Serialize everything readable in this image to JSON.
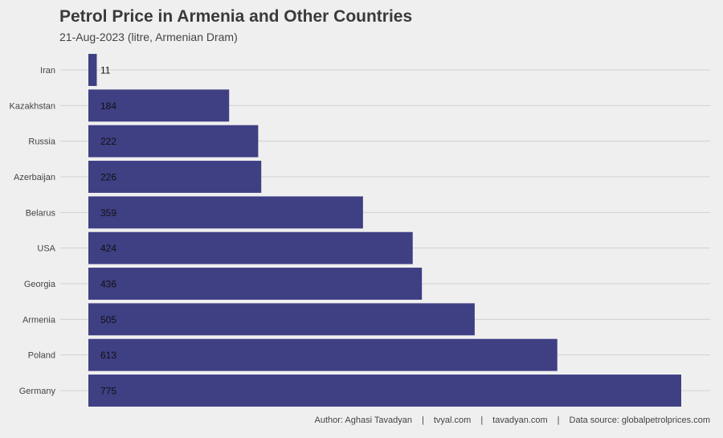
{
  "title": "Petrol Price in Armenia and Other Countries",
  "subtitle": "21-Aug-2023 (litre, Armenian Dram)",
  "caption": {
    "author": "Author: Aghasi Tavadyan",
    "site1": "tvyal.com",
    "site2": "tavadyan.com",
    "source": "Data source: globalpetrolprices.com",
    "separator": "|"
  },
  "colors": {
    "background": "#efefef",
    "bar": "#3f3f84",
    "grid": "#d0d0d0"
  },
  "chart_data": {
    "type": "bar",
    "orientation": "horizontal",
    "categories": [
      "Iran",
      "Kazakhstan",
      "Russia",
      "Azerbaijan",
      "Belarus",
      "USA",
      "Georgia",
      "Armenia",
      "Poland",
      "Germany"
    ],
    "values": [
      11,
      184,
      222,
      226,
      359,
      424,
      436,
      505,
      613,
      775
    ],
    "data_labels": [
      "11",
      "184",
      "222",
      "226",
      "359",
      "424",
      "436",
      "505",
      "613",
      "775"
    ],
    "xlim": [
      0,
      775
    ],
    "x_axis_visible": false,
    "grid": true,
    "legend": "none"
  }
}
